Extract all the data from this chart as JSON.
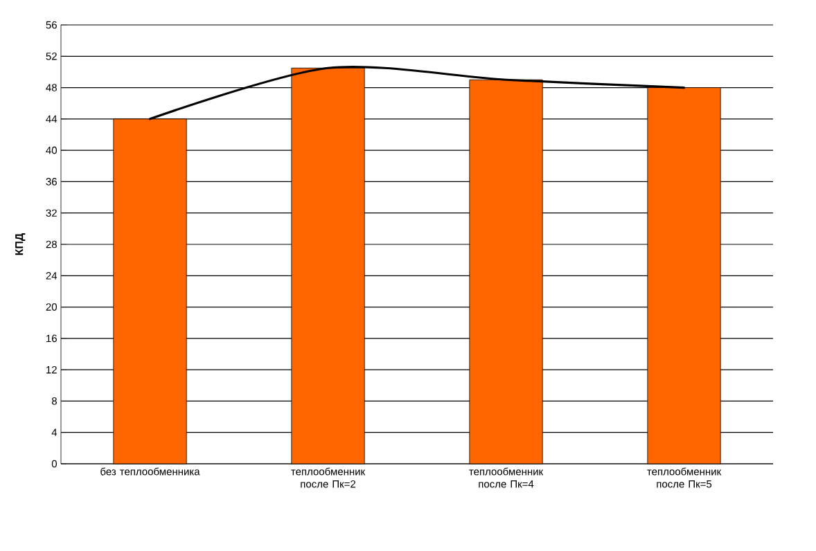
{
  "chart_data": {
    "type": "bar",
    "ylabel": "КПД",
    "categories": [
      "без теплообменника",
      "теплообменник после Пк=2",
      "теплообменник после Пк=4",
      "теплообменник после Пк=5"
    ],
    "series": [
      {
        "type": "bar",
        "color": "#ff6600",
        "values": [
          44,
          50.5,
          49,
          48
        ]
      },
      {
        "type": "line",
        "color": "#000000",
        "values": [
          44,
          50.5,
          49,
          48
        ]
      }
    ],
    "ylim": [
      0,
      56
    ],
    "yticks": [
      0,
      4,
      8,
      12,
      16,
      20,
      24,
      28,
      32,
      36,
      40,
      44,
      48,
      52,
      56
    ],
    "grid": "y"
  }
}
